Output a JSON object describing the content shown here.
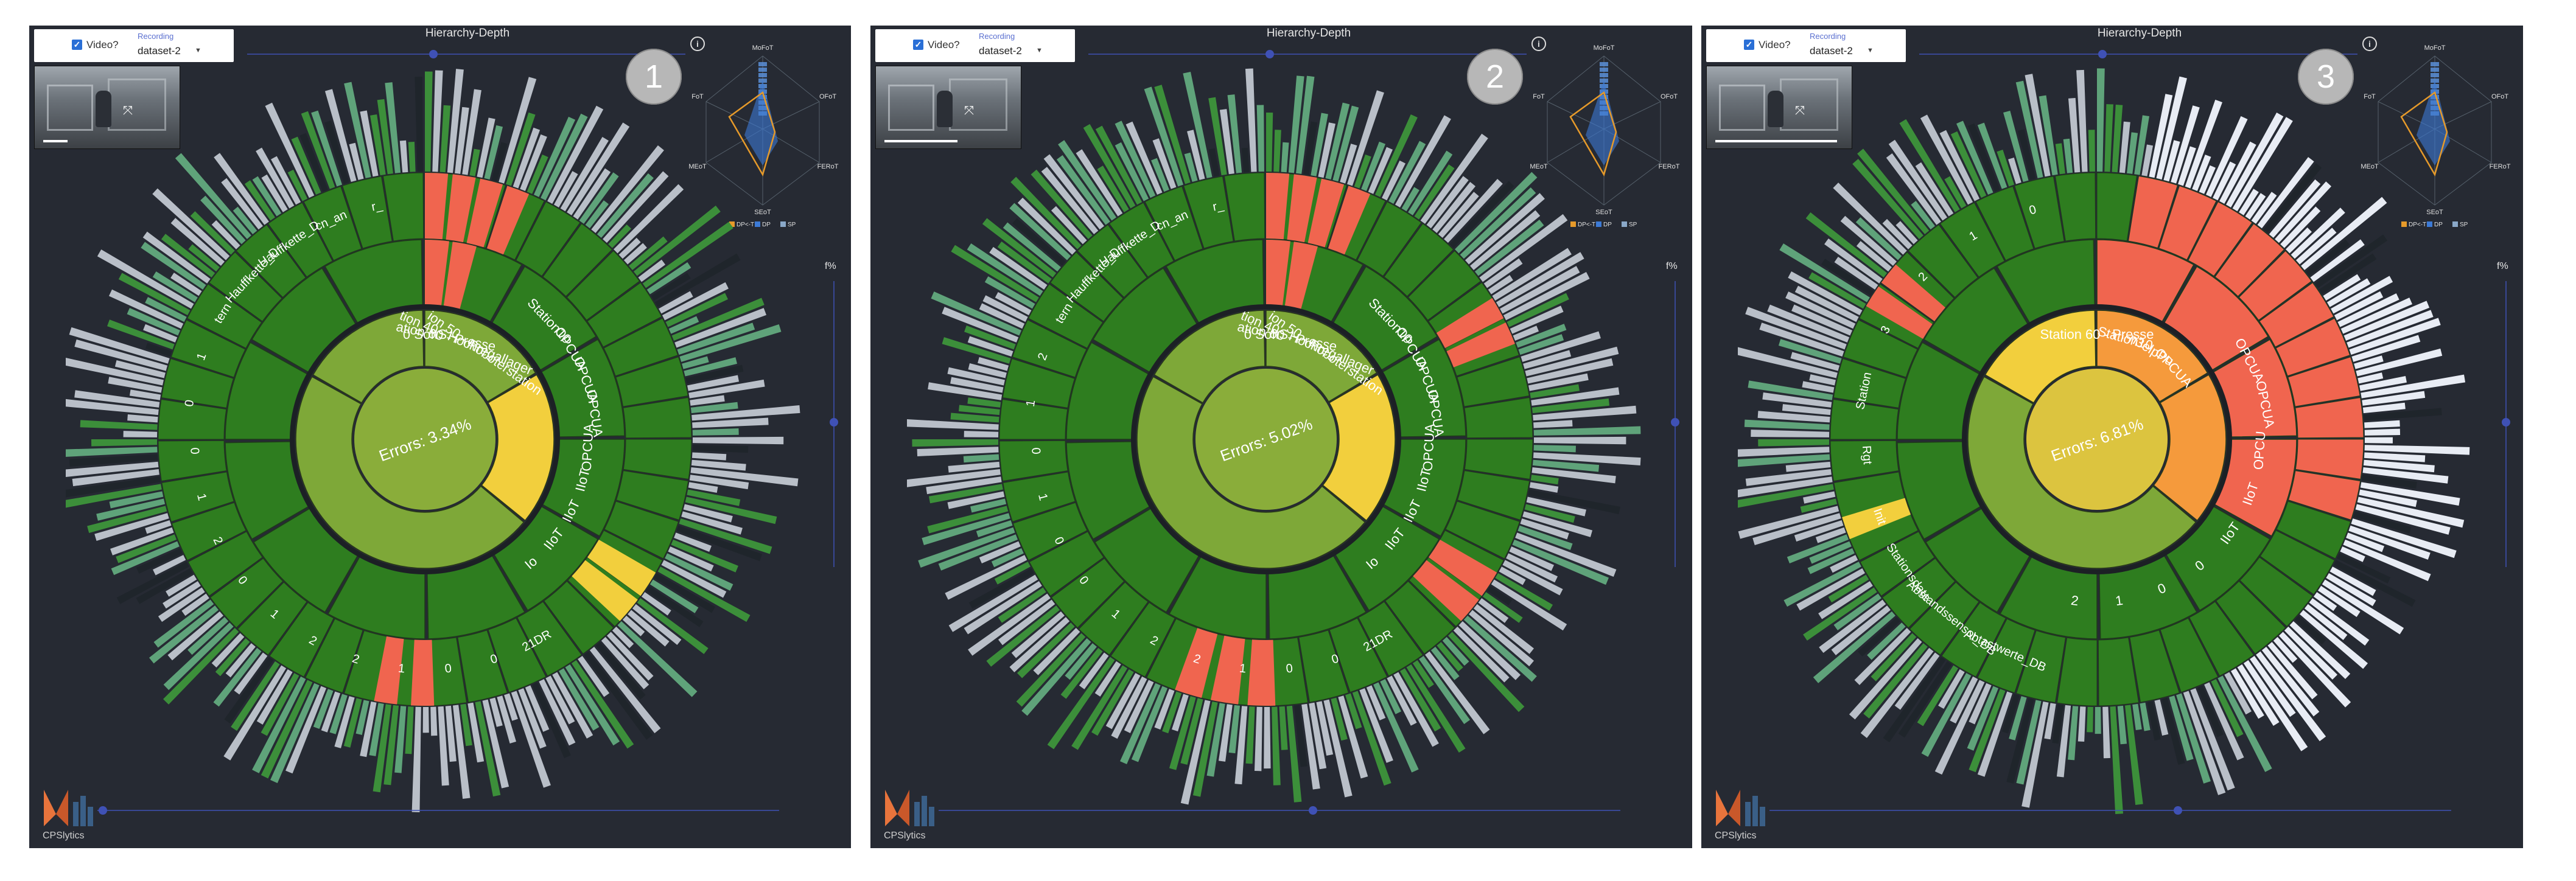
{
  "colors": {
    "panel_bg": "#262a33",
    "green": "#2e7d1f",
    "green_light": "#7ea838",
    "green_center": "#8aad3a",
    "red": "#f0654f",
    "yellow": "#f2cf3d",
    "orange": "#f59a3c",
    "grey": "#b9bfc8",
    "accent": "#3f51b5"
  },
  "panels": [
    {
      "badge": "1",
      "video_label": "Video?",
      "recording_label": "Recording",
      "recording_value": "dataset-2",
      "hierarchy_label": "Hierarchy-Depth",
      "percent_label": "f%",
      "center_text": "Errors: 3.34%",
      "center_color": "#8aad3a",
      "ring_labels": [
        "0 SoftS",
        "ation 60 - Presse",
        "tion 40 - Hochregallager",
        "ion 50 - Roboterstation",
        "Station10",
        "OPCUA",
        "OPCUA",
        "OPCUA",
        "OPCUA",
        "IIoT",
        "IIoT",
        "IIoT",
        "Io",
        "21DR",
        "0",
        "0",
        "1",
        "2",
        "2",
        "1",
        "0",
        "2",
        "1",
        "0",
        "0",
        "1",
        "tern",
        "Hauffkette_D",
        "Hauffkette_D",
        "cn_an",
        "r_"
      ],
      "highlight": "red-top",
      "radar_labels": [
        "MoFoT",
        "OFoT",
        "FERoT",
        "SEoT",
        "MEoT",
        "FoT"
      ],
      "radar_legend": [
        "DP<-T",
        "DP",
        "SP"
      ]
    },
    {
      "badge": "2",
      "video_label": "Video?",
      "recording_label": "Recording",
      "recording_value": "dataset-2",
      "hierarchy_label": "Hierarchy-Depth",
      "percent_label": "f%",
      "center_text": "Errors: 5.02%",
      "center_color": "#8aad3a",
      "ring_labels": [
        "0 SoftS",
        "ation 60 - Presse",
        "tion 40 - Hochregallager",
        "ion 50 - Roboterstation",
        "Station10",
        "OPCUA",
        "OPCUA",
        "OPCUA",
        "OPCUA",
        "IIoT",
        "IIoT",
        "IIoT",
        "Io",
        "21DR",
        "0",
        "0",
        "1",
        "2",
        "2",
        "1",
        "0",
        "0",
        "1",
        "0",
        "1",
        "2",
        "tern",
        "Hauffkette_D",
        "Hauffkette_D",
        "cn_an",
        "r_"
      ],
      "highlight": "red-right",
      "radar_labels": [
        "MoFoT",
        "OFoT",
        "FERoT",
        "SEoT",
        "MEoT",
        "FoT"
      ],
      "radar_legend": [
        "DP<-T",
        "DP",
        "SP"
      ]
    },
    {
      "badge": "3",
      "video_label": "Video?",
      "recording_label": "Recording",
      "recording_value": "dataset-2",
      "hierarchy_label": "Hierarchy-Depth",
      "percent_label": "f%",
      "center_text": "Errors: 6.81%",
      "center_color": "#dcc43f",
      "ring_labels": [
        "Station 60 - Presse",
        "Station10",
        "n3elpPu",
        "OPCUA",
        "OPCUA",
        "OPCUA",
        "OPCU",
        "IIoT",
        "IIoT",
        "0",
        "0",
        "1",
        "2",
        "Abtastwerte_DB",
        "Abstandssensor_DB",
        "Stationsdate",
        "Init",
        "Rgt",
        "Station",
        "3",
        "2",
        "1",
        "0"
      ],
      "highlight": "red-big",
      "radar_labels": [
        "MoFoT",
        "OFoT",
        "FERoT",
        "SEoT",
        "MEoT",
        "FoT"
      ],
      "radar_legend": [
        "DP<-T",
        "DP",
        "SP"
      ]
    }
  ],
  "logo_text": "CPSlytics",
  "info_icon": "info-icon"
}
